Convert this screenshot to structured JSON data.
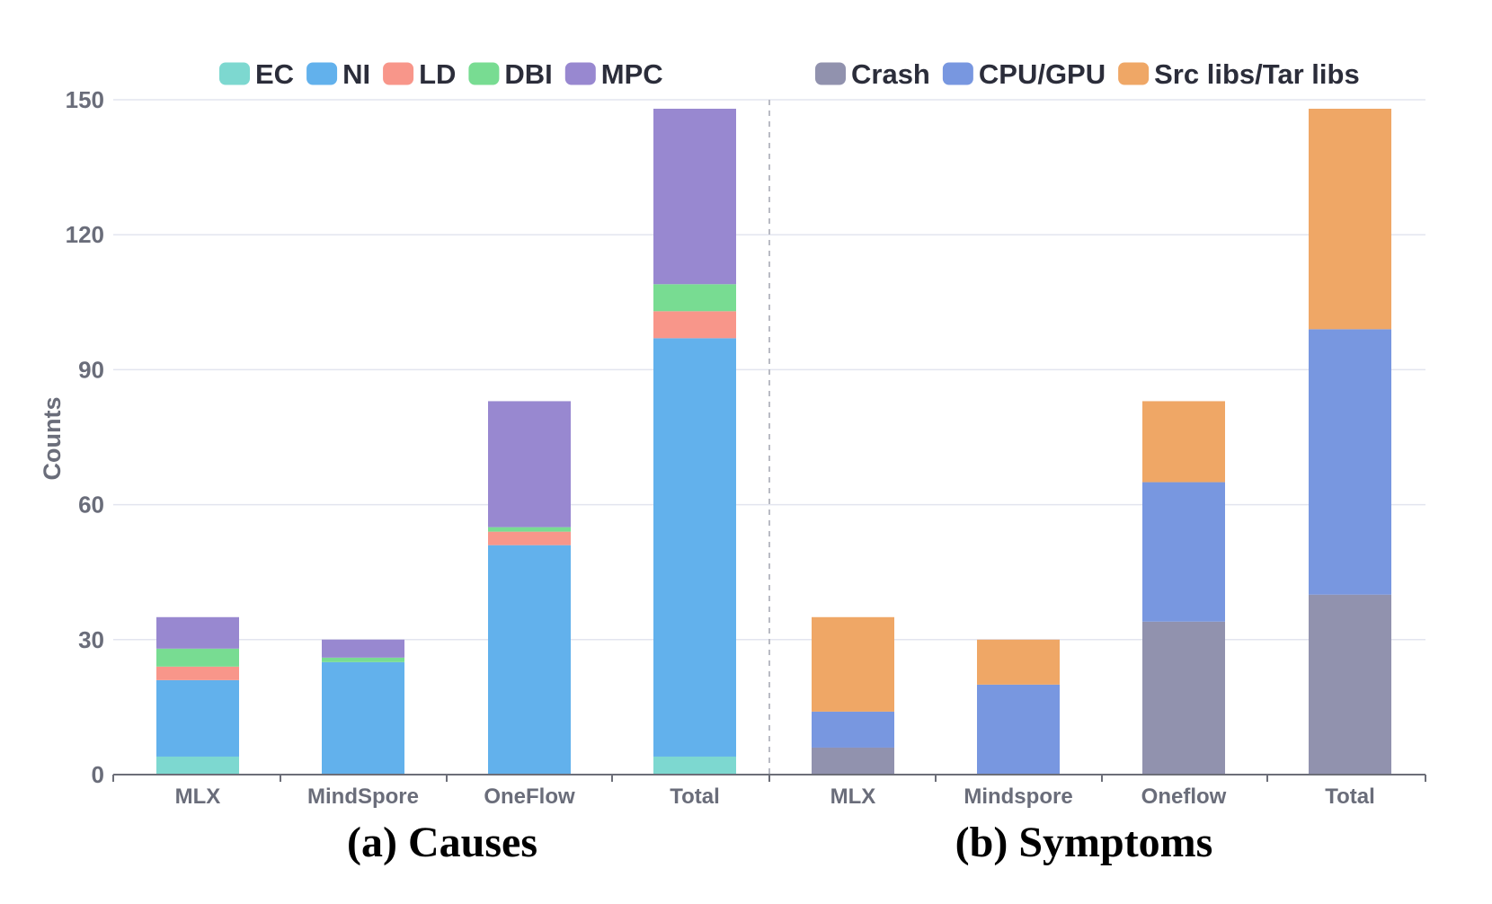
{
  "chart_data": {
    "type": "bar",
    "stacked": true,
    "ylabel": "Counts",
    "ylim": [
      0,
      150
    ],
    "yticks": [
      0,
      30,
      60,
      90,
      120,
      150
    ],
    "grid": true,
    "panels": [
      {
        "caption": "(a) Causes",
        "categories": [
          "MLX",
          "MindSpore",
          "OneFlow",
          "Total"
        ],
        "series": [
          {
            "name": "EC",
            "color": "#7dd8d0",
            "values": [
              4,
              0,
              0,
              4
            ]
          },
          {
            "name": "NI",
            "color": "#62b1ec",
            "values": [
              17,
              25,
              51,
              93
            ]
          },
          {
            "name": "LD",
            "color": "#f8968a",
            "values": [
              3,
              0,
              3,
              6
            ]
          },
          {
            "name": "DBI",
            "color": "#78dc92",
            "values": [
              4,
              1,
              1,
              6
            ]
          },
          {
            "name": "MPC",
            "color": "#9888d0",
            "values": [
              7,
              4,
              28,
              39
            ]
          }
        ]
      },
      {
        "caption": "(b) Symptoms",
        "categories": [
          "MLX",
          "Mindspore",
          "Oneflow",
          "Total"
        ],
        "series": [
          {
            "name": "Crash",
            "color": "#9192ae",
            "values": [
              6,
              0,
              34,
              40
            ]
          },
          {
            "name": "CPU/GPU",
            "color": "#7897e0",
            "values": [
              8,
              20,
              31,
              59
            ]
          },
          {
            "name": "Src libs/Tar libs",
            "color": "#efa766",
            "values": [
              21,
              10,
              18,
              49
            ]
          }
        ]
      }
    ]
  }
}
